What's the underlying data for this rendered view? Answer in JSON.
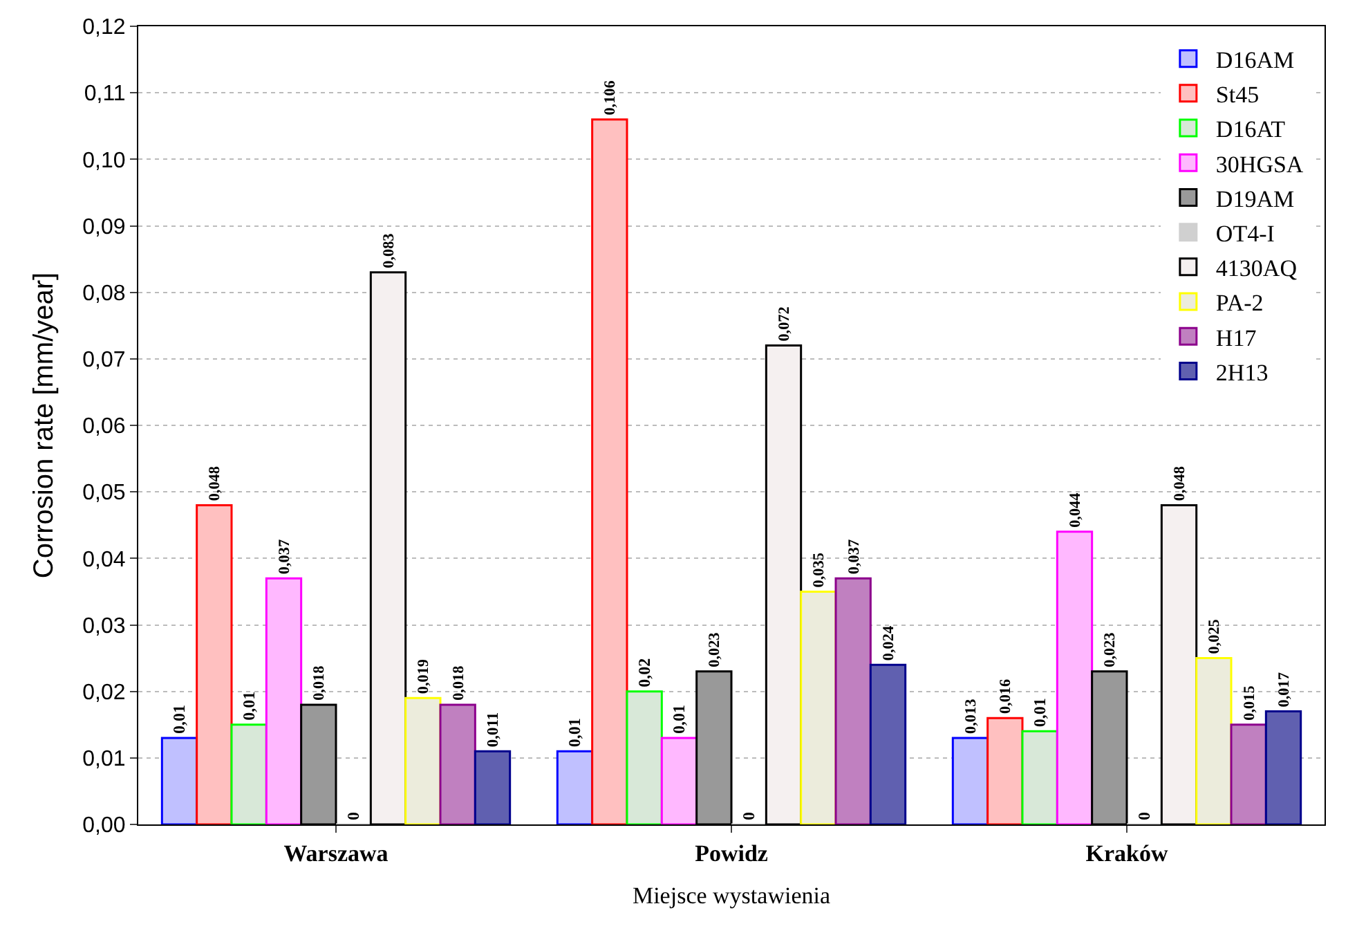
{
  "chart_data": {
    "type": "bar",
    "xlabel": "Miejsce wystawienia",
    "ylabel": "Corrosion rate [mm/year]",
    "categories": [
      "Warszawa",
      "Powidz",
      "Kraków"
    ],
    "series": [
      {
        "name": "D16AM",
        "color": "#c0c0ff",
        "values": [
          0.013,
          0.011,
          0.013
        ],
        "value_labels": [
          "0,01",
          "0,01",
          "0,013"
        ]
      },
      {
        "name": "St45",
        "color": "#ffc0c0",
        "values": [
          0.048,
          0.106,
          0.016
        ],
        "value_labels": [
          "0,048",
          "0,106",
          "0,016"
        ]
      },
      {
        "name": "D16AT",
        "color": "#d8e8d8",
        "values": [
          0.015,
          0.02,
          0.014
        ],
        "value_labels": [
          "0,01",
          "0,02",
          "0,01"
        ]
      },
      {
        "name": "30HGSA",
        "color": "#ffb8ff",
        "values": [
          0.037,
          0.013,
          0.044
        ],
        "value_labels": [
          "0,037",
          "0,01",
          "0,044"
        ]
      },
      {
        "name": "D19AM",
        "color": "#999999",
        "values": [
          0.018,
          0.023,
          0.023
        ],
        "value_labels": [
          "0,018",
          "0,023",
          "0,023"
        ]
      },
      {
        "name": "OT4-I",
        "color": "#d0d0d0",
        "values": [
          0,
          0,
          0
        ],
        "value_labels": [
          "0",
          "0",
          "0"
        ]
      },
      {
        "name": "4130AQ",
        "color": "#f5f0f0",
        "values": [
          0.083,
          0.072,
          0.048
        ],
        "value_labels": [
          "0,083",
          "0,072",
          "0,048"
        ]
      },
      {
        "name": "PA-2",
        "color": "#ececdc",
        "values": [
          0.019,
          0.035,
          0.025
        ],
        "value_labels": [
          "0,019",
          "0,035",
          "0,025"
        ]
      },
      {
        "name": "H17",
        "color": "#c080c0",
        "values": [
          0.018,
          0.037,
          0.015
        ],
        "value_labels": [
          "0,018",
          "0,037",
          "0,015"
        ]
      },
      {
        "name": "2H13",
        "color": "#6060b0",
        "values": [
          0.011,
          0.024,
          0.017
        ],
        "value_labels": [
          "0,011",
          "0,024",
          "0,017"
        ]
      }
    ],
    "ylim": [
      0,
      0.12
    ],
    "yticks": [
      {
        "value": 0,
        "label": "0,00"
      },
      {
        "value": 0.01,
        "label": "0,01"
      },
      {
        "value": 0.02,
        "label": "0,02"
      },
      {
        "value": 0.03,
        "label": "0,03"
      },
      {
        "value": 0.04,
        "label": "0,04"
      },
      {
        "value": 0.05,
        "label": "0,05"
      },
      {
        "value": 0.06,
        "label": "0,06"
      },
      {
        "value": 0.07,
        "label": "0,07"
      },
      {
        "value": 0.08,
        "label": "0,08"
      },
      {
        "value": 0.09,
        "label": "0,09"
      },
      {
        "value": 0.1,
        "label": "0,10"
      },
      {
        "value": 0.11,
        "label": "0,11"
      },
      {
        "value": 0.12,
        "label": "0,12"
      }
    ],
    "grid": "y",
    "legend": "top right"
  }
}
